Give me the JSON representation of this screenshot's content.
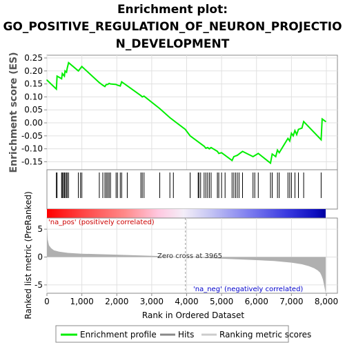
{
  "chart_data": {
    "type": "line",
    "title_lines": [
      "Enrichment plot:",
      "GO_POSITIVE_REGULATION_OF_NEURON_PROJECTIO",
      "N_DEVELOPMENT"
    ],
    "enrichment": {
      "ylabel": "Enrichment score (ES)",
      "xlim": [
        0,
        8200
      ],
      "ylim": [
        -0.17,
        0.25
      ],
      "yticks": [
        "0.25",
        "0.20",
        "0.15",
        "0.10",
        "0.05",
        "0.00",
        "-0.05",
        "-0.10",
        "-0.15"
      ],
      "ytick_values": [
        0.25,
        0.2,
        0.15,
        0.1,
        0.05,
        0.0,
        -0.05,
        -0.1,
        -0.15
      ],
      "series_name": "Enrichment profile",
      "x": [
        0,
        270,
        290,
        420,
        440,
        500,
        520,
        560,
        580,
        620,
        900,
        960,
        1000,
        1500,
        1600,
        1660,
        1700,
        1740,
        1780,
        1820,
        1980,
        2020,
        2100,
        2140,
        2690,
        2730,
        2780,
        3230,
        3520,
        3960,
        4100,
        4500,
        4550,
        4600,
        4650,
        4700,
        4880,
        4920,
        5000,
        5300,
        5350,
        5450,
        5600,
        5900,
        6050,
        6400,
        6450,
        6550,
        6600,
        6650,
        6900,
        6950,
        7000,
        7050,
        7100,
        7150,
        7200,
        7300,
        7350,
        7850,
        7880,
        7980
      ],
      "y": [
        0.165,
        0.13,
        0.18,
        0.17,
        0.19,
        0.18,
        0.2,
        0.195,
        0.21,
        0.232,
        0.2,
        0.21,
        0.217,
        0.155,
        0.145,
        0.14,
        0.148,
        0.148,
        0.152,
        0.15,
        0.148,
        0.145,
        0.142,
        0.158,
        0.105,
        0.1,
        0.103,
        0.055,
        0.02,
        -0.025,
        -0.05,
        -0.09,
        -0.098,
        -0.095,
        -0.1,
        -0.095,
        -0.11,
        -0.118,
        -0.115,
        -0.145,
        -0.13,
        -0.125,
        -0.11,
        -0.13,
        -0.118,
        -0.155,
        -0.12,
        -0.13,
        -0.105,
        -0.115,
        -0.06,
        -0.07,
        -0.04,
        -0.05,
        -0.03,
        -0.045,
        -0.025,
        -0.02,
        0.005,
        -0.065,
        0.015,
        0.005
      ]
    },
    "hits": [
      270,
      290,
      420,
      440,
      470,
      500,
      520,
      560,
      580,
      620,
      900,
      960,
      1000,
      1500,
      1600,
      1660,
      1700,
      1740,
      1780,
      1820,
      1980,
      2020,
      2100,
      2140,
      2300,
      2690,
      2730,
      2780,
      3230,
      3520,
      3620,
      4100,
      4330,
      4350,
      4400,
      4500,
      4550,
      4600,
      4650,
      4700,
      4880,
      4920,
      5000,
      5100,
      5300,
      5350,
      5400,
      5450,
      5500,
      5600,
      5900,
      5950,
      6050,
      6400,
      6450,
      6600,
      6650,
      6900,
      6950,
      7000,
      7100,
      7200,
      7350,
      7850
    ],
    "zone_labels": {
      "pos": "'na_pos' (positively correlated)",
      "neg": "'na_neg' (negatively correlated)"
    },
    "ranked_metric": {
      "ylabel": "Ranked list metric (PreRanked)",
      "ylim": [
        -6.5,
        7
      ],
      "yticks": [
        "5",
        "0",
        "-5"
      ],
      "ytick_values": [
        5,
        0,
        -5
      ],
      "zero_cross_label": "Zero cross at 3965",
      "zero_cross": 3965,
      "x": [
        0,
        20,
        60,
        120,
        200,
        350,
        600,
        1000,
        2000,
        3000,
        3965,
        5000,
        6000,
        6500,
        7000,
        7300,
        7500,
        7650,
        7750,
        7820,
        7860,
        7900,
        7940,
        7980
      ],
      "y": [
        5.8,
        3.2,
        2.1,
        1.6,
        1.2,
        0.95,
        0.75,
        0.6,
        0.42,
        0.22,
        0.0,
        -0.3,
        -0.55,
        -0.72,
        -1.0,
        -1.3,
        -1.65,
        -2.0,
        -2.4,
        -2.8,
        -3.3,
        -4.0,
        -5.2,
        -6.5
      ]
    },
    "xlabel": "Rank in Ordered Dataset",
    "xticks": [
      "0",
      "1,000",
      "2,000",
      "3,000",
      "4,000",
      "5,000",
      "6,000",
      "7,000",
      "8,000"
    ],
    "xtick_values": [
      0,
      1000,
      2000,
      3000,
      4000,
      5000,
      6000,
      7000,
      8000
    ],
    "legend": [
      "Enrichment profile",
      "Hits",
      "Ranking metric scores"
    ],
    "colors": {
      "profile": "#00ee00",
      "hits": "#000000",
      "metric": "#b0b0b0",
      "grid": "#e0e0e0"
    }
  }
}
